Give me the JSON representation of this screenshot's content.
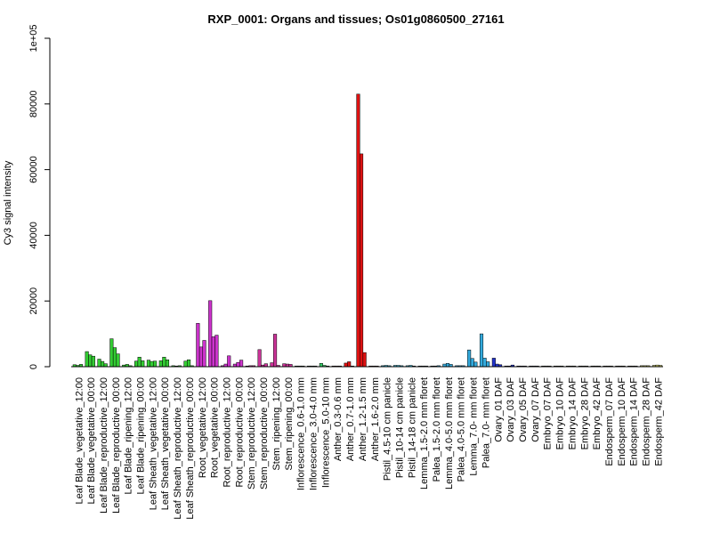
{
  "chart_data": {
    "type": "bar",
    "title": "RXP_0001: Organs and tissues; Os01g0860500_27161",
    "xlabel": "",
    "ylabel": "Cy3 signal intensity",
    "ylim": [
      0,
      100000
    ],
    "yticks": [
      "0",
      "20000",
      "40000",
      "60000",
      "80000",
      "1e+05"
    ],
    "grid": false,
    "categories": [
      "Leaf Blade_vegetative_12:00",
      "Leaf Blade_vegetative_00:00",
      "Leaf Blade_reproductive_12:00",
      "Leaf Blade_reproductive_00:00",
      "Leaf Blade_ripening_12:00",
      "Leaf Blade_ripening_00:00",
      "Leaf Sheath_vegetative_12:00",
      "Leaf Sheath_vegetative_00:00",
      "Leaf Sheath_reproductive_12:00",
      "Leaf Sheath_reproductive_00:00",
      "Root_vegetative_12:00",
      "Root_vegetative_00:00",
      "Root_reproductive_12:00",
      "Root_reproductive_00:00",
      "Stem_reproductive_12:00",
      "Stem_reproductive_00:00",
      "Stem_ripening_12:00",
      "Stem_ripening_00:00",
      "Inflorescence_0.6-1.0 mm",
      "Inflorescence_3.0-4.0 mm",
      "Inflorescence_5.0-10 mm",
      "Anther_0.3-0.6 mm",
      "Anther_0.7-1.0 mm",
      "Anther_1.2-1.5 mm",
      "Anther_1.6-2.0 mm",
      "Pistil_4.5-10 cm panicle",
      "Pistil_10-14 cm panicle",
      "Pistil_14-18 cm panicle",
      "Lemma_1.5-2.0 mm floret",
      "Palea_1.5-2.0 mm floret",
      "Lemma_4.0-5.0 mm floret",
      "Palea_4.0-5.0 mm floret",
      "Lemma_7.0- mm floret",
      "Palea_7.0- mm floret",
      "Ovary_01 DAF",
      "Ovary_03 DAF",
      "Ovary_05 DAF",
      "Ovary_07 DAF",
      "Embryo_07 DAF",
      "Embryo_10 DAF",
      "Embryo_14 DAF",
      "Embryo_28 DAF",
      "Embryo_42 DAF",
      "Endosperm_07 DAF",
      "Endosperm_10 DAF",
      "Endosperm_14 DAF",
      "Endosperm_28 DAF",
      "Endosperm_42 DAF"
    ],
    "replicates": [
      [
        600,
        400,
        700
      ],
      [
        4600,
        3600,
        3200
      ],
      [
        2300,
        1600,
        900
      ],
      [
        8500,
        5800,
        3900
      ],
      [
        500,
        700,
        300
      ],
      [
        1700,
        2900,
        1800
      ],
      [
        2000,
        1600,
        1700
      ],
      [
        1800,
        2900,
        2100
      ],
      [
        300,
        200,
        300
      ],
      [
        1700,
        2100,
        300
      ],
      [
        13200,
        6000,
        8000
      ],
      [
        20100,
        9100,
        9600
      ],
      [
        300,
        800,
        3300
      ],
      [
        800,
        1300,
        2000
      ],
      [
        200,
        300,
        300
      ],
      [
        5200,
        500,
        900
      ],
      [
        1200,
        9900,
        400
      ],
      [
        900,
        800,
        700
      ],
      [
        100,
        100,
        100
      ],
      [
        100,
        100,
        100
      ],
      [
        1000,
        400,
        200
      ],
      [
        100,
        100,
        200
      ],
      [
        1100,
        1500,
        200
      ],
      [
        83000,
        64800,
        4300
      ],
      [
        100,
        100,
        200
      ],
      [
        300,
        400,
        300
      ],
      [
        400,
        400,
        300
      ],
      [
        300,
        400,
        200
      ],
      [
        100,
        100,
        200
      ],
      [
        100,
        100,
        300
      ],
      [
        800,
        1000,
        700
      ],
      [
        300,
        300,
        300
      ],
      [
        5100,
        2500,
        1400
      ],
      [
        10000,
        2600,
        1500
      ],
      [
        2600,
        800,
        600
      ],
      [
        200,
        200,
        500
      ],
      [
        200,
        200,
        200
      ],
      [
        200,
        200,
        200
      ],
      [
        200,
        200,
        200
      ],
      [
        200,
        200,
        200
      ],
      [
        200,
        200,
        200
      ],
      [
        200,
        200,
        200
      ],
      [
        200,
        200,
        200
      ],
      [
        200,
        200,
        200
      ],
      [
        200,
        200,
        200
      ],
      [
        200,
        200,
        200
      ],
      [
        300,
        300,
        300
      ],
      [
        400,
        500,
        400
      ]
    ],
    "colors": [
      "#33cc33",
      "#33cc33",
      "#33cc33",
      "#33cc33",
      "#33cc33",
      "#33cc33",
      "#33cc33",
      "#33cc33",
      "#33cc33",
      "#33cc33",
      "#cc33cc",
      "#cc33cc",
      "#cc33cc",
      "#cc33cc",
      "#cc3399",
      "#cc3399",
      "#cc3399",
      "#cc3399",
      "#33cc66",
      "#33cc66",
      "#33cc66",
      "#dd1111",
      "#dd1111",
      "#dd1111",
      "#dd1111",
      "#33bbdd",
      "#33bbdd",
      "#33bbdd",
      "#33aadd",
      "#33aadd",
      "#33aadd",
      "#33aadd",
      "#33aadd",
      "#33aadd",
      "#2233cc",
      "#2233cc",
      "#2233cc",
      "#2233cc",
      "#99cc66",
      "#99cc66",
      "#99cc66",
      "#99cc66",
      "#99cc66",
      "#cccc66",
      "#cccc66",
      "#cccc66",
      "#cccc66",
      "#cccc66"
    ]
  }
}
